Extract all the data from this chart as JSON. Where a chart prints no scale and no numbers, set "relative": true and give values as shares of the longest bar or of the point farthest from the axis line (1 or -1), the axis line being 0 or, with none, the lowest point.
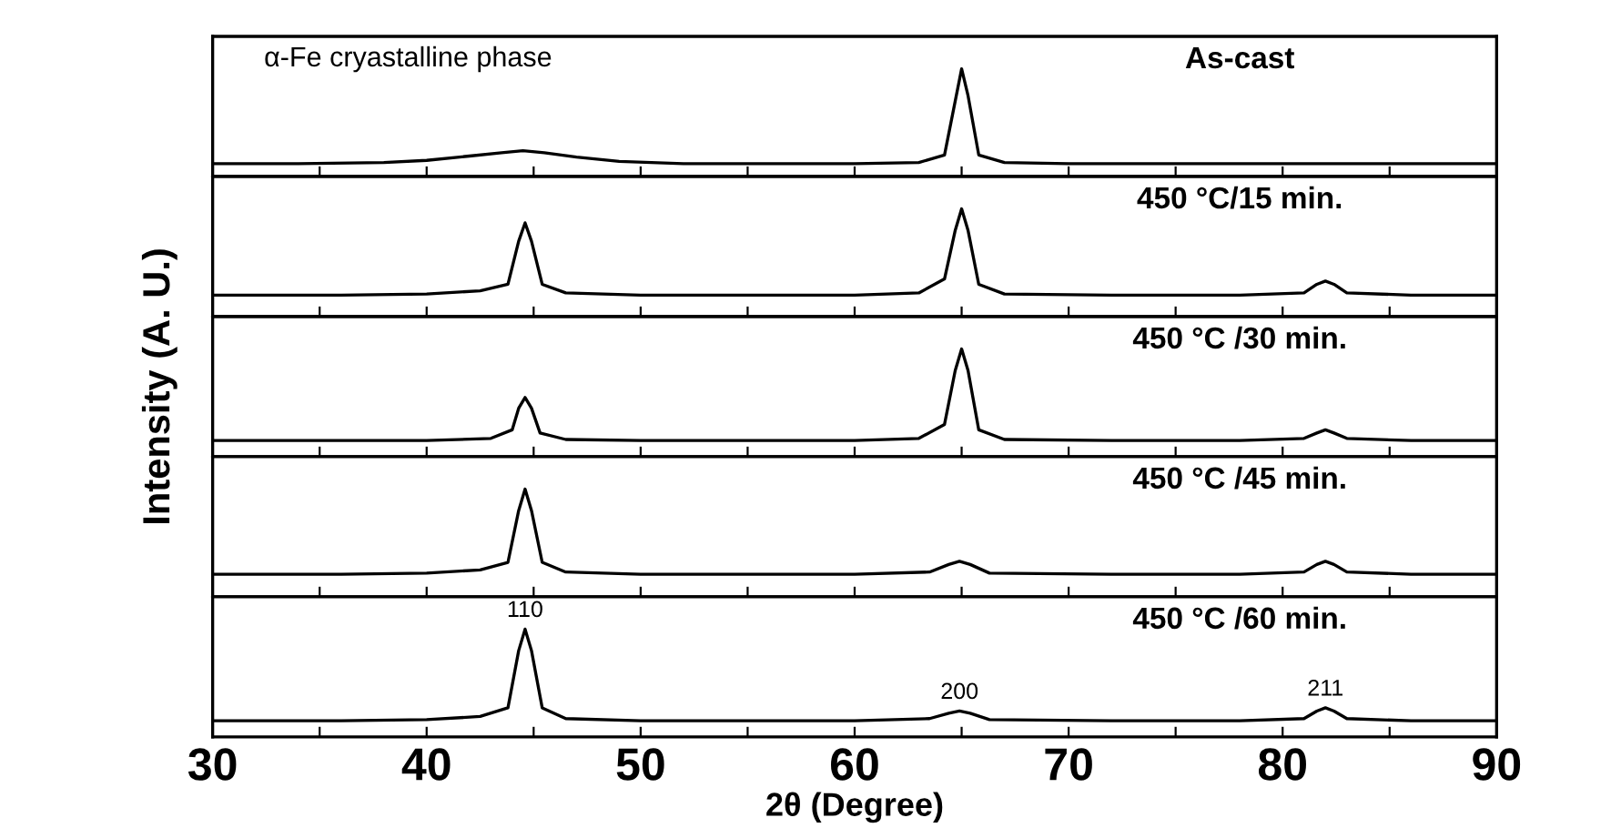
{
  "chart_data": [
    {
      "type": "line",
      "title": "As-cast",
      "annotations": [
        "α-Fe cryastalline phase"
      ],
      "relative": true,
      "xlim": [
        30,
        90
      ],
      "xticks": [
        30,
        {
          "value": 35,
          "label": null
        },
        40,
        {
          "value": 45,
          "label": null
        },
        50,
        {
          "value": 55,
          "label": null
        },
        60,
        {
          "value": 65,
          "label": null
        },
        70,
        {
          "value": 75,
          "label": null
        },
        80,
        {
          "value": 85,
          "label": null
        },
        90
      ],
      "tick_labels": false,
      "x": [
        30,
        34,
        38,
        40,
        42,
        43.5,
        44.5,
        45.5,
        47,
        49,
        52,
        56,
        60,
        63,
        64.2,
        64.7,
        65.0,
        65.3,
        65.8,
        67,
        70,
        75,
        80,
        85,
        90
      ],
      "series": [
        {
          "color": "#000000",
          "values": [
            0.12,
            0.12,
            0.13,
            0.15,
            0.19,
            0.22,
            0.24,
            0.22,
            0.18,
            0.14,
            0.12,
            0.12,
            0.12,
            0.13,
            0.2,
            0.7,
            1,
            0.75,
            0.2,
            0.13,
            0.12,
            0.12,
            0.12,
            0.12,
            0.12
          ]
        }
      ]
    },
    {
      "type": "line",
      "title": "450 °C/15 min.",
      "relative": true,
      "xlim": [
        30,
        90
      ],
      "xticks": [
        30,
        {
          "value": 35,
          "label": null
        },
        40,
        {
          "value": 45,
          "label": null
        },
        50,
        {
          "value": 55,
          "label": null
        },
        60,
        {
          "value": 65,
          "label": null
        },
        70,
        {
          "value": 75,
          "label": null
        },
        80,
        {
          "value": 85,
          "label": null
        },
        90
      ],
      "tick_labels": false,
      "x": [
        30,
        36,
        40,
        42.5,
        43.8,
        44.3,
        44.6,
        44.9,
        45.4,
        46.5,
        50,
        55,
        60,
        63,
        64.2,
        64.7,
        65.0,
        65.3,
        65.8,
        67,
        72,
        78,
        81,
        81.6,
        82.0,
        82.4,
        83,
        86,
        90
      ],
      "series": [
        {
          "color": "#000000",
          "values": [
            0.2,
            0.2,
            0.21,
            0.24,
            0.3,
            0.7,
            0.87,
            0.7,
            0.3,
            0.22,
            0.2,
            0.2,
            0.2,
            0.22,
            0.35,
            0.8,
            1,
            0.8,
            0.3,
            0.21,
            0.2,
            0.2,
            0.22,
            0.3,
            0.33,
            0.3,
            0.22,
            0.2,
            0.2
          ]
        }
      ]
    },
    {
      "type": "line",
      "title": "450 °C /30 min.",
      "ylabel": "Intensity (A. U.)",
      "relative": true,
      "xlim": [
        30,
        90
      ],
      "xticks": [
        30,
        {
          "value": 35,
          "label": null
        },
        40,
        {
          "value": 45,
          "label": null
        },
        50,
        {
          "value": 55,
          "label": null
        },
        60,
        {
          "value": 65,
          "label": null
        },
        70,
        {
          "value": 75,
          "label": null
        },
        80,
        {
          "value": 85,
          "label": null
        },
        90
      ],
      "tick_labels": false,
      "x": [
        30,
        36,
        40,
        43,
        44.0,
        44.3,
        44.6,
        44.9,
        45.3,
        46.5,
        50,
        55,
        60,
        63,
        64.2,
        64.7,
        65.0,
        65.3,
        65.8,
        67,
        72,
        78,
        81,
        81.6,
        82.0,
        82.4,
        83,
        86,
        90
      ],
      "series": [
        {
          "color": "#000000",
          "values": [
            0.15,
            0.15,
            0.15,
            0.17,
            0.25,
            0.45,
            0.55,
            0.45,
            0.22,
            0.16,
            0.15,
            0.15,
            0.15,
            0.17,
            0.3,
            0.8,
            1,
            0.8,
            0.25,
            0.16,
            0.15,
            0.15,
            0.17,
            0.22,
            0.25,
            0.22,
            0.17,
            0.15,
            0.15
          ]
        }
      ]
    },
    {
      "type": "line",
      "title": "450 °C /45 min.",
      "relative": true,
      "xlim": [
        30,
        90
      ],
      "xticks": [
        30,
        {
          "value": 35,
          "label": null
        },
        40,
        {
          "value": 45,
          "label": null
        },
        50,
        {
          "value": 55,
          "label": null
        },
        60,
        {
          "value": 65,
          "label": null
        },
        70,
        {
          "value": 75,
          "label": null
        },
        80,
        {
          "value": 85,
          "label": null
        },
        90
      ],
      "tick_labels": false,
      "x": [
        30,
        36,
        40,
        42.5,
        43.8,
        44.3,
        44.6,
        44.9,
        45.4,
        46.5,
        50,
        55,
        60,
        63.5,
        64.4,
        64.9,
        65.4,
        66.3,
        72,
        78,
        81,
        81.6,
        82.0,
        82.4,
        83,
        86,
        90
      ],
      "series": [
        {
          "color": "#000000",
          "values": [
            0.21,
            0.21,
            0.22,
            0.25,
            0.32,
            0.8,
            1,
            0.8,
            0.32,
            0.23,
            0.21,
            0.21,
            0.21,
            0.23,
            0.3,
            0.33,
            0.3,
            0.22,
            0.21,
            0.21,
            0.23,
            0.3,
            0.33,
            0.3,
            0.23,
            0.21,
            0.21
          ]
        }
      ]
    },
    {
      "type": "line",
      "title": "450 °C /60 min.",
      "xlabel": "2θ (Degree)",
      "relative": true,
      "xlim": [
        30,
        90
      ],
      "xticks": [
        30,
        {
          "value": 35,
          "label": null
        },
        40,
        {
          "value": 45,
          "label": null
        },
        50,
        {
          "value": 55,
          "label": null
        },
        60,
        {
          "value": 65,
          "label": null
        },
        70,
        {
          "value": 75,
          "label": null
        },
        80,
        {
          "value": 85,
          "label": null
        },
        90
      ],
      "annotations": [
        {
          "text": "110",
          "x": 44.6,
          "y": 1
        },
        {
          "text": "200",
          "x": 64.9,
          "y": 0.24
        },
        {
          "text": "211",
          "x": 82.0,
          "y": 0.27
        }
      ],
      "x": [
        30,
        36,
        40,
        42.5,
        43.8,
        44.3,
        44.6,
        44.9,
        45.4,
        46.5,
        50,
        55,
        60,
        63.5,
        64.4,
        64.9,
        65.4,
        66.3,
        72,
        78,
        81,
        81.6,
        82.0,
        82.4,
        83,
        86,
        90
      ],
      "series": [
        {
          "color": "#000000",
          "values": [
            0.15,
            0.15,
            0.16,
            0.19,
            0.27,
            0.8,
            1,
            0.8,
            0.27,
            0.17,
            0.15,
            0.15,
            0.15,
            0.17,
            0.22,
            0.24,
            0.22,
            0.16,
            0.15,
            0.15,
            0.17,
            0.24,
            0.27,
            0.24,
            0.17,
            0.15,
            0.15
          ]
        }
      ]
    }
  ]
}
